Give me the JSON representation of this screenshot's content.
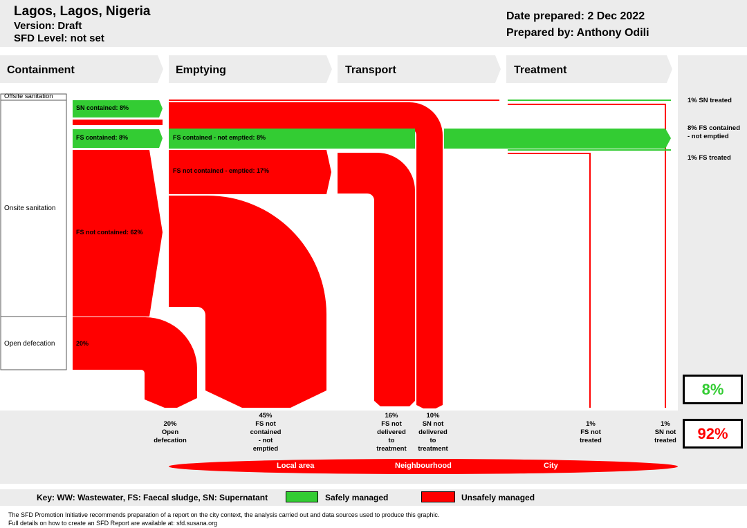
{
  "header": {
    "city": "Lagos, Lagos, Nigeria",
    "version": "Version: Draft",
    "sfd_level": "SFD Level: not set",
    "date_prepared": "Date prepared: 2 Dec 2022",
    "prepared_by": "Prepared by: Anthony Odili"
  },
  "stages": [
    "Containment",
    "Emptying",
    "Transport",
    "Treatment"
  ],
  "system_labels": {
    "offsite": "Offsite sanitation",
    "onsite": "Onsite sanitation",
    "open_defecation": "Open defecation"
  },
  "flow_labels": {
    "sn_contained": "SN contained: 8%",
    "fs_contained": "FS contained: 8%",
    "fs_contained_not_emptied": "FS contained - not emptied: 8%",
    "fs_not_contained_emptied": "FS not contained - emptied: 17%",
    "fs_not_contained": "FS not contained: 62%",
    "open_def": "20%"
  },
  "side_values": {
    "sn_treated": "1% SN treated",
    "fs_contained_not_emptied_l1": "8% FS contained",
    "fs_contained_not_emptied_l2": "- not emptied",
    "fs_treated": "1% FS treated"
  },
  "bottom_labels": {
    "open_def": [
      "20%",
      "Open",
      "defecation"
    ],
    "fs_not_contained_not_emptied": [
      "45%",
      "FS not",
      "contained",
      "- not",
      "emptied"
    ],
    "fs_not_delivered": [
      "16%",
      "FS not",
      "delivered",
      "to",
      "treatment"
    ],
    "sn_not_delivered": [
      "10%",
      "SN not",
      "delivered",
      "to",
      "treatment"
    ],
    "fs_not_treated": [
      "1%",
      "FS not",
      "treated"
    ],
    "sn_not_treated": [
      "1%",
      "SN not",
      "treated"
    ]
  },
  "totals": {
    "safe": "8%",
    "unsafe": "92%"
  },
  "scale_bar": {
    "local": "Local area",
    "neighbourhood": "Neighbourhood",
    "city": "City"
  },
  "key": {
    "abbrev": "Key: WW: Wastewater, FS: Faecal sludge, SN: Supernatant",
    "safe": "Safely managed",
    "unsafe": "Unsafely managed"
  },
  "footer": {
    "line1": "The SFD Promotion Initiative recommends preparation of a report on the city context, the analysis carried out and data sources used to produce this graphic.",
    "line2": "Full details on how to create an SFD Report are available at: sfd.susana.org"
  },
  "colors": {
    "safe": "#33cc33",
    "unsafe": "#ff0000",
    "header_bg": "#ececec"
  }
}
